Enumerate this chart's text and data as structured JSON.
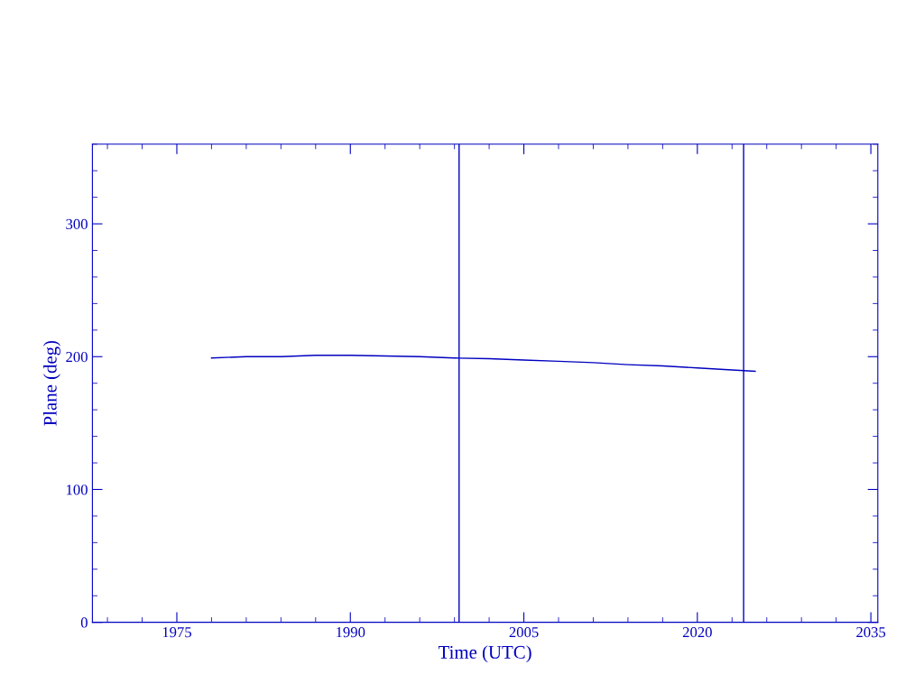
{
  "chart_data": {
    "type": "line",
    "xlabel": "Time (UTC)",
    "ylabel": "Plane (deg)",
    "x": [
      1978.0,
      1981,
      1984,
      1987,
      1990,
      1993,
      1996,
      1999,
      2002,
      2005,
      2008,
      2011,
      2014,
      2017,
      2020,
      2023,
      2025.0
    ],
    "series": [
      {
        "color": "#0000c0",
        "values": [
          199,
          200,
          200,
          201,
          201,
          200.5,
          200,
          199,
          198.5,
          197.5,
          196.5,
          195.5,
          194,
          193,
          191.5,
          190,
          189
        ]
      }
    ],
    "xlim": [
      1967.7,
      2035.6
    ],
    "xticks": [
      1975,
      1990,
      2005,
      2020,
      2035
    ],
    "ylim": [
      0,
      360
    ],
    "yticks": [
      0,
      100,
      200,
      300
    ],
    "ref_lines": [
      {
        "axis": "x",
        "value": 1999.4,
        "color": "#0000c0"
      },
      {
        "axis": "x",
        "value": 2024.0,
        "color": "#0000c0"
      }
    ],
    "grid": false,
    "legend": false
  }
}
